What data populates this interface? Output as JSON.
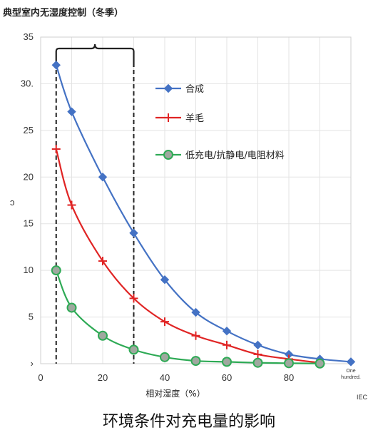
{
  "chart_data": {
    "type": "line",
    "title": "典型室内无湿度控制（冬季）",
    "xlabel": "相对湿度（%）",
    "ylabel": "",
    "xlim": [
      0,
      100
    ],
    "ylim": [
      0,
      35
    ],
    "x_ticks": [
      "0",
      "20",
      "40",
      "60",
      "80",
      "One hundred."
    ],
    "y_ticks": [
      "›",
      "5",
      "10",
      "15",
      "20",
      "25",
      "30.",
      "35"
    ],
    "y_tick_values": [
      0,
      5,
      10,
      15,
      20,
      25,
      30,
      35
    ],
    "x_tick_values": [
      0,
      20,
      40,
      60,
      80,
      100
    ],
    "grid": true,
    "legend_position": "right",
    "highlight_range": [
      5,
      30
    ],
    "series": [
      {
        "name": "合成",
        "color": "#4472C4",
        "marker": "diamond",
        "x": [
          5,
          10,
          20,
          30,
          40,
          50,
          60,
          70,
          80,
          90,
          100
        ],
        "y": [
          32,
          27,
          20,
          14,
          9,
          5.5,
          3.5,
          2,
          1,
          0.5,
          0.2
        ]
      },
      {
        "name": "羊毛",
        "color": "#E02424",
        "marker": "plus",
        "x": [
          5,
          10,
          20,
          30,
          40,
          50,
          60,
          70,
          80,
          90
        ],
        "y": [
          23,
          17,
          11,
          7,
          4.5,
          3,
          2,
          1,
          0.5,
          0.1
        ]
      },
      {
        "name": "低充电/抗静电/电阻材料",
        "color": "#2EAA55",
        "marker": "circle",
        "x": [
          5,
          10,
          20,
          30,
          40,
          50,
          60,
          70,
          80,
          90
        ],
        "y": [
          10,
          6,
          3,
          1.5,
          0.7,
          0.3,
          0.2,
          0.1,
          0.05,
          0.02
        ]
      }
    ]
  },
  "y_axis_stray": "ɔ",
  "source": "IEC",
  "caption": "环境条件对充电量的影响"
}
